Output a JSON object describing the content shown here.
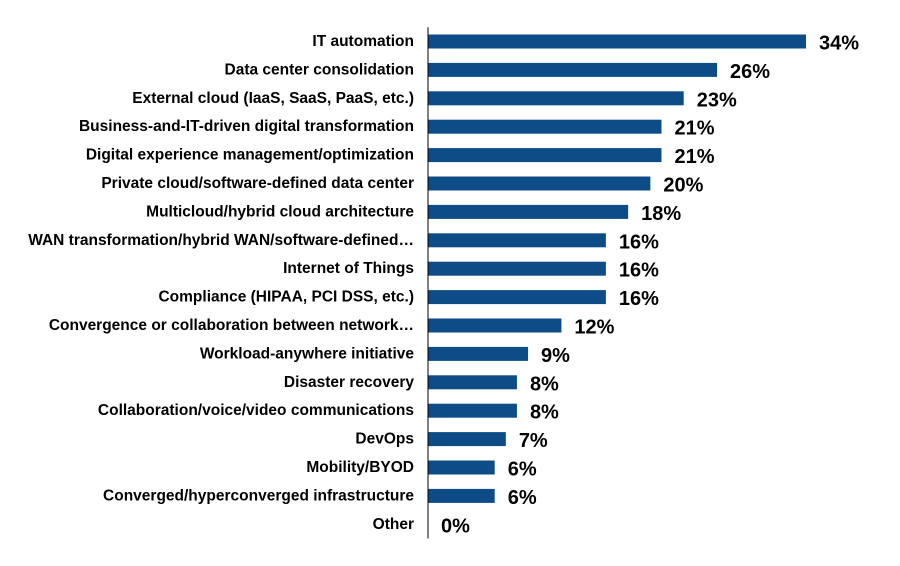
{
  "colors": {
    "bar": "#0D4C87",
    "axis": "#000000",
    "text": "#000000",
    "background": "#FFFFFF"
  },
  "chart_data": {
    "type": "bar",
    "orientation": "horizontal",
    "title": "",
    "xlabel": "",
    "ylabel": "",
    "xlim": [
      0,
      34
    ],
    "grid": false,
    "legend": "none",
    "value_format": "percent",
    "categories": [
      "IT automation",
      "Data center consolidation",
      "External cloud (IaaS, SaaS, PaaS, etc.)",
      "Business-and-IT-driven digital transformation",
      "Digital experience management/optimization",
      "Private cloud/software-defined data center",
      "Multicloud/hybrid cloud architecture",
      "WAN transformation/hybrid WAN/software-defined…",
      "Internet of Things",
      "Compliance (HIPAA, PCI DSS, etc.)",
      "Convergence or collaboration between network…",
      "Workload-anywhere initiative",
      "Disaster recovery",
      "Collaboration/voice/video communications",
      "DevOps",
      "Mobility/BYOD",
      "Converged/hyperconverged infrastructure",
      "Other"
    ],
    "values": [
      34,
      26,
      23,
      21,
      21,
      20,
      18,
      16,
      16,
      16,
      12,
      9,
      8,
      8,
      7,
      6,
      6,
      0
    ],
    "value_labels": [
      "34%",
      "26%",
      "23%",
      "21%",
      "21%",
      "20%",
      "18%",
      "16%",
      "16%",
      "16%",
      "12%",
      "9%",
      "8%",
      "8%",
      "7%",
      "6%",
      "6%",
      "0%"
    ]
  }
}
